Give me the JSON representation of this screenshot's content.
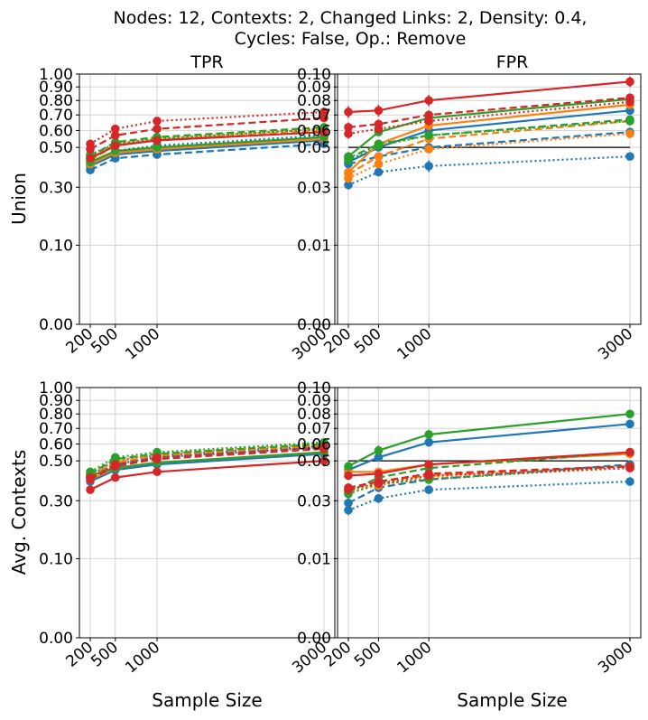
{
  "figure": {
    "title_line1": "Nodes: 12, Contexts: 2, Changed Links: 2, Density: 0.4,",
    "title_line2": "Cycles: False, Op.: Remove",
    "xlabel": "Sample Size"
  },
  "colors": {
    "blue": "#1f77b4",
    "orange": "#ff7f0e",
    "green": "#2ca02c",
    "red": "#d62728",
    "grid": "#d3d3d3",
    "reference_line": "#000000"
  },
  "chart_data": [
    {
      "type": "line",
      "col_title": "TPR",
      "row_label": "Union",
      "x": [
        200,
        500,
        1000,
        3000
      ],
      "x_ticks": [
        "200",
        "500",
        "1000",
        "3000"
      ],
      "y_ticks": [
        "0.00",
        "0.10",
        "0.30",
        "0.50",
        "0.60",
        "0.70",
        "0.80",
        "0.90",
        "1.00"
      ],
      "y_tick_values": [
        0,
        0.1,
        0.3,
        0.5,
        0.6,
        0.7,
        0.8,
        0.9,
        1.0
      ],
      "ylim": [
        0,
        1.0
      ],
      "scale": "sqrt",
      "grid": true,
      "series": [
        {
          "color": "blue",
          "style": "solid",
          "values": [
            0.4,
            0.46,
            0.48,
            0.54
          ]
        },
        {
          "color": "blue",
          "style": "dashed",
          "values": [
            0.38,
            0.44,
            0.46,
            0.52
          ]
        },
        {
          "color": "blue",
          "style": "dotted",
          "values": [
            0.42,
            0.48,
            0.51,
            0.57
          ]
        },
        {
          "color": "orange",
          "style": "solid",
          "values": [
            0.41,
            0.47,
            0.49,
            0.55
          ]
        },
        {
          "color": "orange",
          "style": "dashed",
          "values": [
            0.43,
            0.51,
            0.54,
            0.6
          ]
        },
        {
          "color": "orange",
          "style": "dotted",
          "values": [
            0.44,
            0.52,
            0.55,
            0.61
          ]
        },
        {
          "color": "green",
          "style": "solid",
          "values": [
            0.42,
            0.48,
            0.5,
            0.56
          ]
        },
        {
          "color": "green",
          "style": "dashed",
          "values": [
            0.45,
            0.53,
            0.56,
            0.62
          ]
        },
        {
          "color": "green",
          "style": "dotted",
          "values": [
            0.46,
            0.52,
            0.55,
            0.61
          ]
        },
        {
          "color": "red",
          "style": "solid",
          "values": [
            0.44,
            0.51,
            0.54,
            0.59
          ]
        },
        {
          "color": "red",
          "style": "dashed",
          "values": [
            0.49,
            0.57,
            0.61,
            0.68
          ]
        },
        {
          "color": "red",
          "style": "dotted",
          "values": [
            0.52,
            0.61,
            0.66,
            0.72
          ]
        }
      ]
    },
    {
      "type": "line",
      "col_title": "FPR",
      "row_label": "Union",
      "x": [
        200,
        500,
        1000,
        3000
      ],
      "x_ticks": [
        "200",
        "500",
        "1000",
        "3000"
      ],
      "y_ticks": [
        "0.00",
        "0.01",
        "0.03",
        "0.05",
        "0.06",
        "0.07",
        "0.08",
        "0.09",
        "0.10"
      ],
      "y_tick_values": [
        0,
        0.01,
        0.03,
        0.05,
        0.06,
        0.07,
        0.08,
        0.09,
        0.1
      ],
      "ylim": [
        0,
        0.1
      ],
      "scale": "sqrt",
      "grid": true,
      "reference_line": 0.05,
      "series": [
        {
          "color": "blue",
          "style": "solid",
          "values": [
            0.042,
            0.05,
            0.06,
            0.073
          ],
          "err": [
            0.002,
            0.002,
            0.002,
            0.002
          ]
        },
        {
          "color": "blue",
          "style": "dashed",
          "values": [
            0.041,
            0.045,
            0.05,
            0.059
          ],
          "err": [
            0.002,
            0.002,
            0.002,
            0.002
          ]
        },
        {
          "color": "blue",
          "style": "dotted",
          "values": [
            0.031,
            0.037,
            0.04,
            0.045
          ],
          "err": [
            0.002,
            0.002,
            0.003,
            0.002
          ]
        },
        {
          "color": "orange",
          "style": "solid",
          "values": [
            0.037,
            0.052,
            0.063,
            0.077
          ],
          "err": [
            0.002,
            0.002,
            0.002,
            0.002
          ]
        },
        {
          "color": "orange",
          "style": "dashed",
          "values": [
            0.036,
            0.045,
            0.055,
            0.066
          ],
          "err": [
            0.002,
            0.002,
            0.002,
            0.002
          ]
        },
        {
          "color": "orange",
          "style": "dotted",
          "values": [
            0.034,
            0.041,
            0.049,
            0.058
          ],
          "err": [
            0.002,
            0.002,
            0.002,
            0.002
          ]
        },
        {
          "color": "green",
          "style": "solid",
          "values": [
            0.045,
            0.059,
            0.068,
            0.081
          ],
          "err": [
            0.002,
            0.002,
            0.003,
            0.002
          ]
        },
        {
          "color": "green",
          "style": "dashed",
          "values": [
            0.044,
            0.052,
            0.057,
            0.067
          ],
          "err": [
            0.002,
            0.002,
            0.002,
            0.002
          ]
        },
        {
          "color": "green",
          "style": "dotted",
          "values": [
            0.043,
            0.051,
            0.057,
            0.066
          ],
          "err": [
            0.002,
            0.002,
            0.002,
            0.002
          ]
        },
        {
          "color": "red",
          "style": "solid",
          "values": [
            0.072,
            0.073,
            0.08,
            0.094
          ],
          "err": [
            0.004,
            0.004,
            0.004,
            0.004
          ]
        },
        {
          "color": "red",
          "style": "dashed",
          "values": [
            0.062,
            0.064,
            0.07,
            0.082
          ],
          "err": [
            0.003,
            0.003,
            0.003,
            0.003
          ]
        },
        {
          "color": "red",
          "style": "dotted",
          "values": [
            0.058,
            0.061,
            0.066,
            0.079
          ],
          "err": [
            0.003,
            0.003,
            0.003,
            0.003
          ]
        }
      ]
    },
    {
      "type": "line",
      "col_title": "",
      "row_label": "Avg. Contexts",
      "x": [
        200,
        500,
        1000,
        3000
      ],
      "x_ticks": [
        "200",
        "500",
        "1000",
        "3000"
      ],
      "y_ticks": [
        "0.00",
        "0.10",
        "0.30",
        "0.50",
        "0.60",
        "0.70",
        "0.80",
        "0.90",
        "1.00"
      ],
      "y_tick_values": [
        0,
        0.1,
        0.3,
        0.5,
        0.6,
        0.7,
        0.8,
        0.9,
        1.0
      ],
      "ylim": [
        0,
        1.0
      ],
      "scale": "sqrt",
      "grid": true,
      "series": [
        {
          "color": "blue",
          "style": "solid",
          "values": [
            0.39,
            0.45,
            0.48,
            0.54
          ]
        },
        {
          "color": "blue",
          "style": "dashed",
          "values": [
            0.41,
            0.48,
            0.52,
            0.58
          ]
        },
        {
          "color": "blue",
          "style": "dotted",
          "values": [
            0.42,
            0.5,
            0.53,
            0.59
          ]
        },
        {
          "color": "orange",
          "style": "solid",
          "values": [
            0.4,
            0.46,
            0.49,
            0.55
          ]
        },
        {
          "color": "orange",
          "style": "dashed",
          "values": [
            0.42,
            0.49,
            0.53,
            0.59
          ]
        },
        {
          "color": "orange",
          "style": "dotted",
          "values": [
            0.43,
            0.5,
            0.54,
            0.6
          ]
        },
        {
          "color": "green",
          "style": "solid",
          "values": [
            0.42,
            0.46,
            0.49,
            0.55
          ]
        },
        {
          "color": "green",
          "style": "dashed",
          "values": [
            0.43,
            0.51,
            0.54,
            0.6
          ]
        },
        {
          "color": "green",
          "style": "dotted",
          "values": [
            0.44,
            0.52,
            0.55,
            0.61
          ]
        },
        {
          "color": "red",
          "style": "solid",
          "values": [
            0.35,
            0.41,
            0.44,
            0.5
          ]
        },
        {
          "color": "red",
          "style": "dashed",
          "values": [
            0.4,
            0.47,
            0.51,
            0.57
          ]
        },
        {
          "color": "red",
          "style": "dotted",
          "values": [
            0.41,
            0.48,
            0.52,
            0.58
          ]
        }
      ]
    },
    {
      "type": "line",
      "col_title": "",
      "row_label": "",
      "x": [
        200,
        500,
        1000,
        3000
      ],
      "x_ticks": [
        "200",
        "500",
        "1000",
        "3000"
      ],
      "y_ticks": [
        "0.00",
        "0.01",
        "0.03",
        "0.05",
        "0.06",
        "0.07",
        "0.08",
        "0.09",
        "0.10"
      ],
      "y_tick_values": [
        0,
        0.01,
        0.03,
        0.05,
        0.06,
        0.07,
        0.08,
        0.09,
        0.1
      ],
      "ylim": [
        0,
        0.1
      ],
      "scale": "sqrt",
      "grid": true,
      "reference_line": 0.05,
      "series": [
        {
          "color": "blue",
          "style": "solid",
          "values": [
            0.045,
            0.052,
            0.061,
            0.073
          ],
          "err": [
            0.002,
            0.002,
            0.002,
            0.002
          ]
        },
        {
          "color": "blue",
          "style": "dashed",
          "values": [
            0.029,
            0.036,
            0.04,
            0.048
          ],
          "err": [
            0.002,
            0.002,
            0.002,
            0.002
          ]
        },
        {
          "color": "blue",
          "style": "dotted",
          "values": [
            0.026,
            0.031,
            0.035,
            0.039
          ],
          "err": [
            0.002,
            0.002,
            0.002,
            0.002
          ]
        },
        {
          "color": "orange",
          "style": "solid",
          "values": [
            0.044,
            0.044,
            0.048,
            0.054
          ],
          "err": [
            0.002,
            0.002,
            0.002,
            0.002
          ]
        },
        {
          "color": "orange",
          "style": "dashed",
          "values": [
            0.035,
            0.039,
            0.042,
            0.047
          ],
          "err": [
            0.002,
            0.002,
            0.002,
            0.002
          ]
        },
        {
          "color": "orange",
          "style": "dotted",
          "values": [
            0.034,
            0.037,
            0.041,
            0.046
          ],
          "err": [
            0.002,
            0.002,
            0.002,
            0.002
          ]
        },
        {
          "color": "green",
          "style": "solid",
          "values": [
            0.047,
            0.056,
            0.066,
            0.08
          ],
          "err": [
            0.002,
            0.003,
            0.003,
            0.003
          ]
        },
        {
          "color": "green",
          "style": "dashed",
          "values": [
            0.034,
            0.041,
            0.046,
            0.055
          ],
          "err": [
            0.002,
            0.002,
            0.002,
            0.002
          ]
        },
        {
          "color": "green",
          "style": "dotted",
          "values": [
            0.033,
            0.038,
            0.04,
            0.047
          ],
          "err": [
            0.002,
            0.002,
            0.002,
            0.002
          ]
        },
        {
          "color": "red",
          "style": "solid",
          "values": [
            0.042,
            0.043,
            0.048,
            0.055
          ],
          "err": [
            0.002,
            0.002,
            0.002,
            0.002
          ]
        },
        {
          "color": "red",
          "style": "dashed",
          "values": [
            0.036,
            0.039,
            0.043,
            0.047
          ],
          "err": [
            0.002,
            0.002,
            0.002,
            0.002
          ]
        },
        {
          "color": "red",
          "style": "dotted",
          "values": [
            0.035,
            0.038,
            0.042,
            0.046
          ],
          "err": [
            0.002,
            0.002,
            0.002,
            0.002
          ]
        }
      ]
    }
  ]
}
